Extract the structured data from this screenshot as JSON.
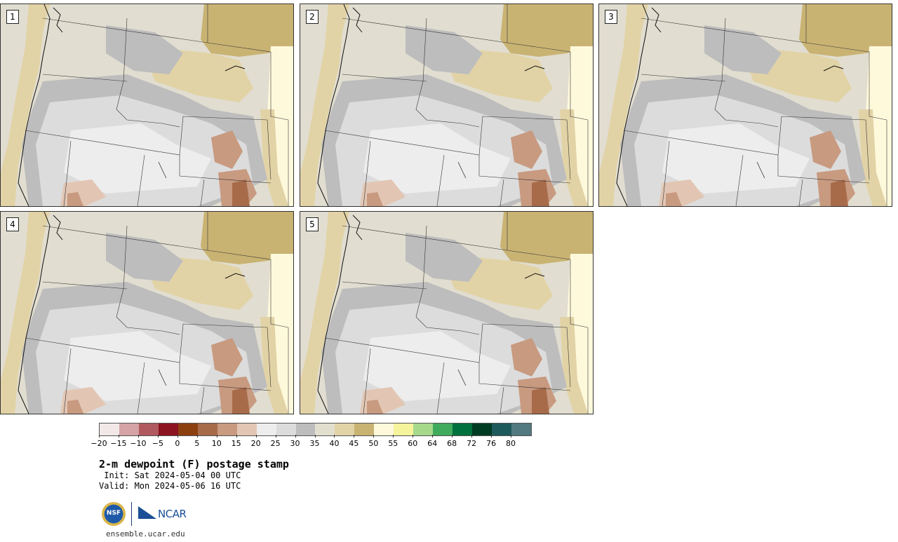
{
  "members": [
    "1",
    "2",
    "3",
    "4",
    "5"
  ],
  "colorbar": {
    "colors": [
      "#f3e8e8",
      "#d4a3a5",
      "#b05a60",
      "#8b1420",
      "#8c3f0f",
      "#a86b4a",
      "#c89a80",
      "#e2c6b3",
      "#ededed",
      "#dcdcdc",
      "#bdbdbd",
      "#e3dfcf",
      "#e2d3a6",
      "#c9b373",
      "#fff9dc",
      "#f5f39c",
      "#a7d98c",
      "#41ab5d",
      "#00703c",
      "#003b24",
      "#1e5a5c",
      "#52797f"
    ],
    "tick_labels": [
      "−20",
      "−15",
      "−10",
      "−5",
      "0",
      "5",
      "10",
      "15",
      "20",
      "25",
      "30",
      "35",
      "40",
      "45",
      "50",
      "55",
      "60",
      "64",
      "68",
      "72",
      "76",
      "80"
    ]
  },
  "title": "2-m dewpoint (F) postage stamp",
  "init": " Init: Sat 2024-05-04 00 UTC",
  "valid": "Valid: Mon 2024-05-06 16 UTC",
  "logos": {
    "nsf": "NSF",
    "ncar": "NCAR"
  },
  "site": "ensemble.ucar.edu"
}
